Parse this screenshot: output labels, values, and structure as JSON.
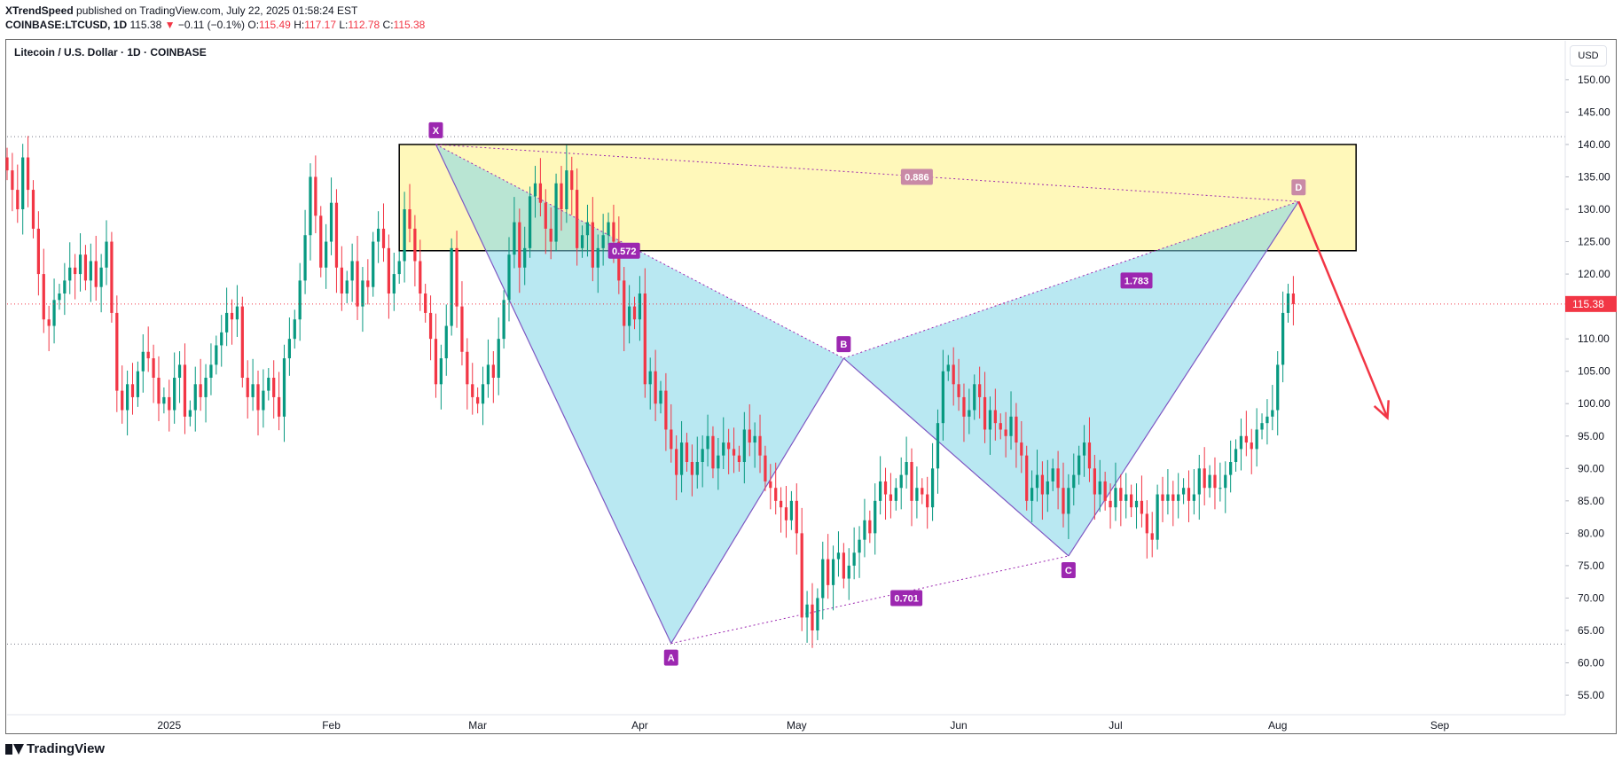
{
  "header": {
    "publisher": "XTrendSpeed",
    "published_text": "published on TradingView.com, July 22, 2025 01:58:24 EST",
    "symbol": "COINBASE:LTCUSD, 1D",
    "last": "115.38",
    "arrow": "▼",
    "change": "−0.11 (−0.1%)",
    "o_label": "O:",
    "o": "115.49",
    "h_label": "H:",
    "h": "117.17",
    "l_label": "L:",
    "l": "112.78",
    "c_label": "C:",
    "c": "115.38"
  },
  "chart_title": "Litecoin / U.S. Dollar · 1D · COINBASE",
  "currency": "USD",
  "brand": "TradingView",
  "colors": {
    "up": "#089981",
    "down": "#f23645",
    "pattern": "#9c27b0",
    "fill": "#b2ebf2",
    "zone": "#fff59d",
    "arrow": "#f23645"
  },
  "chart_data": {
    "type": "candlestick",
    "title": "Litecoin / U.S. Dollar · 1D · COINBASE",
    "y_axis": {
      "ticks": [
        "55.00",
        "60.00",
        "65.00",
        "70.00",
        "75.00",
        "80.00",
        "85.00",
        "90.00",
        "95.00",
        "100.00",
        "105.00",
        "110.00",
        "115.00",
        "120.00",
        "125.00",
        "130.00",
        "135.00",
        "140.00",
        "145.00",
        "150.00"
      ],
      "range": [
        52,
        156
      ]
    },
    "x_axis": {
      "labels": [
        {
          "label": "2025",
          "date": "2025-01-01"
        },
        {
          "label": "Feb",
          "date": "2025-02-01"
        },
        {
          "label": "Mar",
          "date": "2025-03-01"
        },
        {
          "label": "Apr",
          "date": "2025-04-01"
        },
        {
          "label": "May",
          "date": "2025-05-01"
        },
        {
          "label": "Jun",
          "date": "2025-06-01"
        },
        {
          "label": "Jul",
          "date": "2025-07-01"
        },
        {
          "label": "Aug",
          "date": "2025-08-01"
        },
        {
          "label": "Sep",
          "date": "2025-09-01"
        }
      ],
      "range": [
        "2024-12-01",
        "2025-09-25"
      ]
    },
    "last_price": 115.38,
    "price_lines": [
      141.2,
      115.38,
      62.9
    ],
    "harmonic_points": [
      {
        "label": "X",
        "date": "2025-02-21",
        "price": 140.0
      },
      {
        "label": "A",
        "date": "2025-04-07",
        "price": 63.0
      },
      {
        "label": "B",
        "date": "2025-05-10",
        "price": 107.0
      },
      {
        "label": "C",
        "date": "2025-06-22",
        "price": 76.5
      },
      {
        "label": "D",
        "date": "2025-08-05",
        "price": 131.2
      }
    ],
    "ratios": [
      {
        "label": "0.886",
        "date": "2025-05-24",
        "price": 135.0
      },
      {
        "label": "0.572",
        "date": "2025-03-29",
        "price": 123.6
      },
      {
        "label": "1.783",
        "date": "2025-07-05",
        "price": 119.0
      },
      {
        "label": "0.701",
        "date": "2025-05-22",
        "price": 70.0
      }
    ],
    "zone": {
      "start": "2025-02-14",
      "end": "2025-08-16",
      "top": 140.0,
      "bottom": 123.6
    },
    "projection": {
      "from_date": "2025-08-05",
      "from_price": 131.2,
      "to_date": "2025-08-22",
      "to_price": 97.8
    },
    "candles_start": "2024-12-01",
    "closes": [
      136,
      133,
      130,
      138,
      133,
      127,
      120,
      113,
      112,
      116,
      117,
      119,
      121,
      120,
      123,
      119,
      122,
      118,
      121,
      125,
      114,
      102,
      99,
      103,
      101,
      105,
      108,
      107,
      104,
      100,
      101,
      99,
      104,
      106,
      98,
      99,
      103,
      101,
      104,
      106,
      109,
      111,
      114,
      113,
      115,
      104,
      101,
      103,
      99,
      102,
      104,
      101,
      98,
      107,
      110,
      113,
      119,
      126,
      135,
      129,
      121,
      125,
      131,
      121,
      117,
      119,
      122,
      115,
      119,
      118,
      125,
      127,
      124,
      117,
      120,
      122,
      130,
      127,
      122,
      117,
      114,
      110,
      103,
      107,
      112,
      124,
      115,
      108,
      103,
      101,
      100,
      103,
      106,
      104,
      110,
      116,
      123,
      128,
      121,
      124,
      132,
      134,
      131,
      127,
      125,
      134,
      130,
      136,
      133,
      124,
      126,
      128,
      121,
      124,
      126,
      128,
      125,
      119,
      112,
      115,
      113,
      117,
      103,
      105,
      100,
      102,
      96,
      93,
      89,
      94,
      91,
      89,
      91,
      93,
      95,
      90,
      92,
      94,
      93,
      92,
      91,
      96,
      94,
      95,
      92,
      88,
      87,
      85,
      84,
      82,
      85,
      80,
      67,
      69,
      65,
      70,
      76,
      72,
      76,
      77,
      73,
      75,
      77,
      79,
      82,
      80,
      85,
      88,
      86,
      85,
      87,
      89,
      91,
      85,
      87,
      86,
      84,
      90,
      97,
      105,
      106,
      103,
      101,
      98,
      99,
      103,
      101,
      96,
      99,
      97,
      96,
      95,
      98,
      94,
      92,
      85,
      87,
      89,
      86,
      88,
      90,
      87,
      83,
      87,
      89,
      92,
      94,
      90,
      86,
      88,
      85,
      84,
      87,
      85,
      86,
      84,
      85,
      83,
      80,
      79,
      86,
      85,
      86,
      85,
      86,
      87,
      85,
      86,
      90,
      87,
      89,
      87,
      87,
      89,
      91,
      93,
      95,
      94,
      93,
      96,
      97,
      98,
      99,
      106,
      114,
      117,
      115.38
    ]
  }
}
